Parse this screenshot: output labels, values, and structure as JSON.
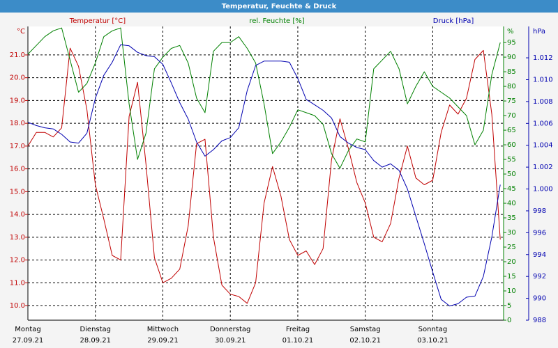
{
  "chart_data": {
    "type": "line",
    "title": "Temperatur, Feuchte & Druck",
    "x": [
      0,
      0.125,
      0.25,
      0.375,
      0.5,
      0.625,
      0.75,
      0.875,
      1,
      1.125,
      1.25,
      1.375,
      1.5,
      1.625,
      1.75,
      1.875,
      2,
      2.125,
      2.25,
      2.375,
      2.5,
      2.625,
      2.75,
      2.875,
      3,
      3.125,
      3.25,
      3.375,
      3.5,
      3.625,
      3.75,
      3.875,
      4,
      4.125,
      4.25,
      4.375,
      4.5,
      4.625,
      4.75,
      4.875,
      5,
      5.125,
      5.25,
      5.375,
      5.5,
      5.625,
      5.75,
      5.875,
      6,
      6.125,
      6.25,
      6.375,
      6.5,
      6.625,
      6.75,
      6.875,
      7
    ],
    "xlim": [
      0,
      7.05
    ],
    "xticks": [
      {
        "value": 0,
        "label": "Montag",
        "date": "27.09.21"
      },
      {
        "value": 1,
        "label": "Dienstag",
        "date": "28.09.21"
      },
      {
        "value": 2,
        "label": "Mittwoch",
        "date": "29.09.21"
      },
      {
        "value": 3,
        "label": "Donnerstag",
        "date": "30.09.21"
      },
      {
        "value": 4,
        "label": "Freitag",
        "date": "01.10.21"
      },
      {
        "value": 5,
        "label": "Samstag",
        "date": "02.10.21"
      },
      {
        "value": 6,
        "label": "Sonntag",
        "date": "03.10.21"
      }
    ],
    "y_unit": "°C",
    "ylim": [
      9.36,
      22.25
    ],
    "yticks": [
      {
        "value": 10,
        "label": "10.0"
      },
      {
        "value": 11,
        "label": "11.0"
      },
      {
        "value": 12,
        "label": "12.0"
      },
      {
        "value": 13,
        "label": "13.0"
      },
      {
        "value": 14,
        "label": "14.0"
      },
      {
        "value": 15,
        "label": "15.0"
      },
      {
        "value": 16,
        "label": "16.0"
      },
      {
        "value": 17,
        "label": "17.0"
      },
      {
        "value": 18,
        "label": "18.0"
      },
      {
        "value": 19,
        "label": "19.0"
      },
      {
        "value": 20,
        "label": "20.0"
      },
      {
        "value": 21,
        "label": "21.0"
      }
    ],
    "y2_unit": "%",
    "y2lim": [
      0,
      100.5
    ],
    "y2ticks": [
      0,
      5,
      10,
      15,
      20,
      25,
      30,
      35,
      40,
      45,
      50,
      55,
      60,
      65,
      70,
      75,
      80,
      85,
      90,
      95
    ],
    "y3_unit": "hPa",
    "y3lim": [
      988,
      1014.87
    ],
    "y3ticks": [
      988,
      990,
      992,
      994,
      996,
      998,
      {
        "value": 1000,
        "label": "1.000"
      },
      {
        "value": 1002,
        "label": "1.002"
      },
      {
        "value": 1004,
        "label": "1.004"
      },
      {
        "value": 1006,
        "label": "1.006"
      },
      {
        "value": 1008,
        "label": "1.008"
      },
      {
        "value": 1010,
        "label": "1.010"
      },
      {
        "value": 1012,
        "label": "1.012"
      }
    ],
    "grid": true,
    "series": [
      {
        "name": "Temperatur [°C]",
        "color": "#c00000",
        "axis": "y",
        "values": [
          17.0,
          17.6,
          17.6,
          17.4,
          17.8,
          21.3,
          20.5,
          18.6,
          15.3,
          13.8,
          12.2,
          12.0,
          18.3,
          19.8,
          16.2,
          12.1,
          11.0,
          11.2,
          11.6,
          13.5,
          17.1,
          17.3,
          13.0,
          10.9,
          10.5,
          10.4,
          10.1,
          11.0,
          14.5,
          16.1,
          14.8,
          12.9,
          12.2,
          12.4,
          11.8,
          12.5,
          16.4,
          18.2,
          16.9,
          15.4,
          14.5,
          13.0,
          12.8,
          13.6,
          15.6,
          17.0,
          15.6,
          15.3,
          15.5,
          17.6,
          18.8,
          18.4,
          19.1,
          20.8,
          21.2,
          18.4,
          12.9
        ]
      },
      {
        "name": "rel. Feuchte [%]",
        "color": "#008000",
        "axis": "y2",
        "values": [
          91,
          94,
          97,
          99,
          100,
          89,
          78,
          81,
          88,
          97,
          99,
          100,
          74,
          55,
          64,
          86,
          90,
          93,
          94,
          88,
          76,
          71,
          92,
          95,
          95,
          97,
          93,
          88,
          74,
          57,
          61,
          66,
          72,
          71,
          70,
          67,
          57,
          52,
          58,
          62,
          61,
          86,
          89,
          92,
          86,
          74,
          80,
          85,
          80,
          78,
          76,
          73,
          70,
          60,
          65,
          84,
          95
        ]
      },
      {
        "name": "Druck [hPa]",
        "color": "#0000b0",
        "axis": "y3",
        "values": [
          1006.1,
          1005.8,
          1005.6,
          1005.5,
          1005.0,
          1004.3,
          1004.2,
          1005.1,
          1008.3,
          1010.4,
          1011.6,
          1013.2,
          1013.1,
          1012.5,
          1012.2,
          1012.1,
          1011.4,
          1009.7,
          1007.9,
          1006.4,
          1004.3,
          1003.0,
          1003.6,
          1004.4,
          1004.7,
          1005.6,
          1009.0,
          1011.3,
          1011.7,
          1011.7,
          1011.7,
          1011.6,
          1010.1,
          1008.2,
          1007.7,
          1007.2,
          1006.5,
          1004.8,
          1004.2,
          1003.8,
          1003.6,
          1002.6,
          1002.0,
          1002.3,
          1001.7,
          1000.0,
          997.5,
          995.0,
          992.4,
          989.9,
          989.3,
          989.5,
          990.1,
          990.2,
          992.0,
          995.6,
          1000.4
        ]
      }
    ]
  }
}
